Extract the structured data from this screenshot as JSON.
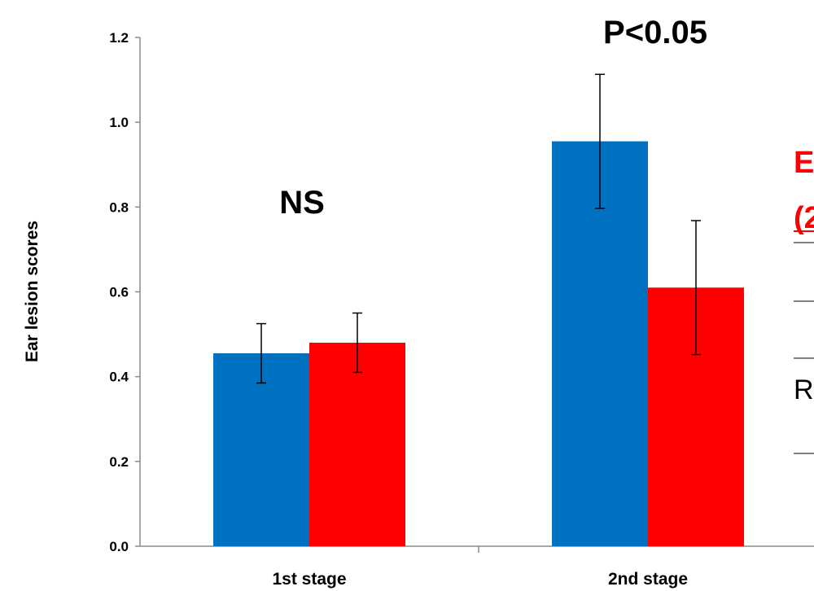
{
  "chart_data": {
    "type": "bar",
    "categories": [
      "1st stage",
      "2nd stage"
    ],
    "series": [
      {
        "values": [
          0.455,
          0.955
        ],
        "errors": [
          0.07,
          0.158
        ],
        "color": "#0070c0"
      },
      {
        "values": [
          0.48,
          0.61
        ],
        "errors": [
          0.07,
          0.158
        ],
        "color": "#ff0000"
      }
    ],
    "ylabel": "Ear lesion scores",
    "ylim": [
      0,
      1.2
    ],
    "yticks": [
      "0.0",
      "0.2",
      "0.4",
      "0.6",
      "0.8",
      "1.0",
      "1.2"
    ],
    "annotations": [
      "NS",
      "P<0.05"
    ],
    "grid": false
  },
  "side_panel": {
    "heading_line1": "E",
    "heading_line2": "(2",
    "row_text": "R"
  }
}
